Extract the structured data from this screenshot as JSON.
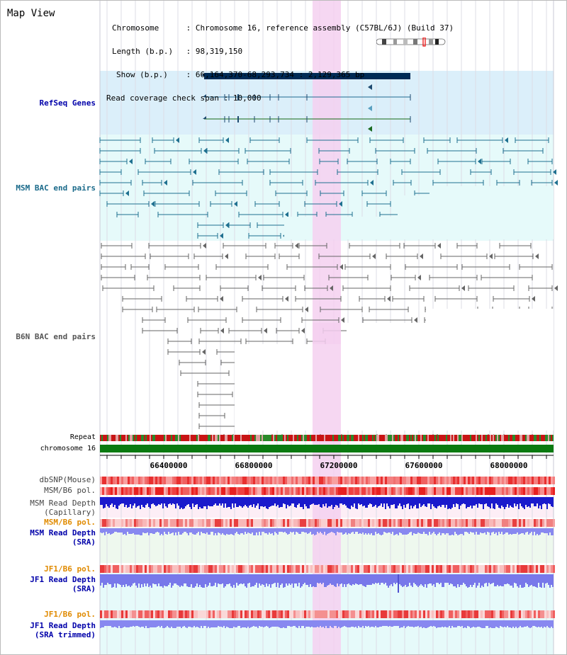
{
  "title": "Map View",
  "info": {
    "chromosome_label": "Chromosome",
    "chromosome_value": "Chromosome 16, reference assembly (C57BL/6J) (Build 37)",
    "length_label": "Length (b.p.)",
    "length_value": "98,319,150",
    "show_label": "Show (b.p.)",
    "show_value": "66,164,370-68,293,734 : 2,129,365 bp",
    "coverage_label": "Read coverage check span",
    "coverage_value": "10,000",
    "separator": ":"
  },
  "tracks": {
    "refseq": "RefSeq Genes",
    "msm_bac": "MSM BAC end pairs",
    "b6n_bac": "B6N BAC end pairs",
    "repeat": "Repeat",
    "chromosome": "chromosome 16",
    "dbsnp": "dbSNP(Mouse)",
    "msm_b6_pol": "MSM/B6 pol.",
    "msm_depth_cap_1": "MSM Read Depth",
    "msm_depth_cap_2": "(Capillary)",
    "msm_b6_pol_sra": "MSM/B6 pol.",
    "msm_depth_sra_1": "MSM Read Depth",
    "msm_depth_sra_2": "(SRA)",
    "jf1_b6_pol": "JF1/B6 pol.",
    "jf1_depth_1": "JF1 Read Depth",
    "jf1_depth_2": "(SRA)",
    "jf1_b6_pol_trim": "JF1/B6 pol.",
    "jf1_depth_trim_1": "JF1 Read Depth",
    "jf1_depth_trim_2": "(SRA trimmed)"
  },
  "axis": {
    "ticks": [
      "66400000",
      "66800000",
      "67200000",
      "67600000",
      "68000000"
    ]
  },
  "colors": {
    "refseq_bg": "#dbeffa",
    "msm_bg": "#e6fafa",
    "b6n_bg": "#f6f6f6",
    "highlight": "#f5d0f0",
    "gene_bar": "#002a55",
    "msm_feature": "#1f7090",
    "b6n_feature": "#666666",
    "chromosome_green": "#0a7a10",
    "depth_blue": "#1a1acc",
    "depth_light": "#8888f0",
    "label_blue": "#0000aa",
    "label_orange": "#e08a00",
    "label_teal": "#1a6a8a"
  }
}
